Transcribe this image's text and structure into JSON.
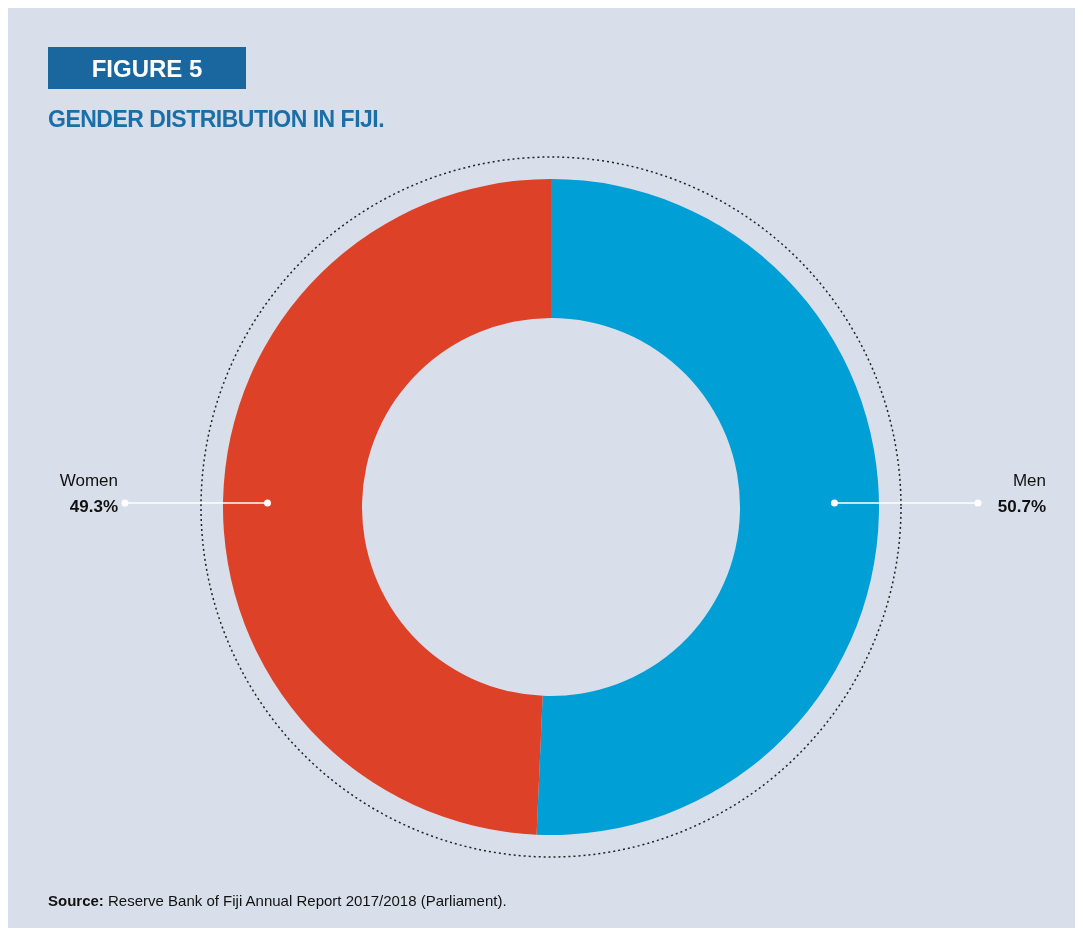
{
  "chart_data": {
    "type": "donut",
    "title": "FIGURE 5",
    "subtitle": "GENDER DISTRIBUTION IN FIJI.",
    "categories": [
      "Men",
      "Women"
    ],
    "values": [
      50.7,
      49.3
    ],
    "value_labels": [
      "50.7%",
      "49.3%"
    ],
    "colors": [
      "#009fd6",
      "#dd4127"
    ],
    "annotations": [
      "Source: Reserve Bank of Fiji Annual Report 2017/2018 (Parliament)."
    ],
    "legend": false
  }
}
